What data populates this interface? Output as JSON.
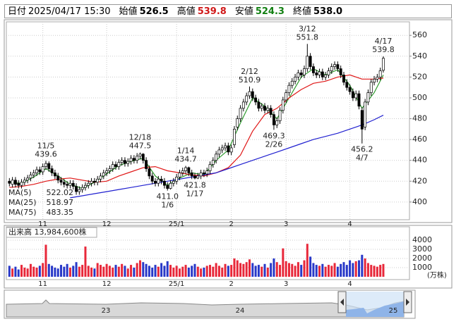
{
  "header": {
    "items": [
      {
        "label": "日付",
        "value": "2025/04/17 15:30",
        "color": "#000000"
      },
      {
        "label": "始値",
        "value": "526.5",
        "color": "#000000"
      },
      {
        "label": "高値",
        "value": "539.8",
        "color": "#d01818"
      },
      {
        "label": "安値",
        "value": "524.3",
        "color": "#128012"
      },
      {
        "label": "終値",
        "value": "538.0",
        "color": "#000000"
      }
    ]
  },
  "chart_data": {
    "type": "candlestick",
    "xlim": [
      -1,
      131.6
    ],
    "xticks": [
      {
        "value": 11,
        "label": "11"
      },
      {
        "value": 32,
        "label": "12"
      },
      {
        "value": 55,
        "label": "25/1"
      },
      {
        "value": 73,
        "label": "2"
      },
      {
        "value": 91,
        "label": "3"
      },
      {
        "value": 112,
        "label": "4"
      }
    ],
    "ylim": [
      383,
      573
    ],
    "yticks": [
      400,
      420,
      440,
      460,
      480,
      500,
      520,
      540,
      560
    ],
    "grid": true,
    "up_color": "#ffffff",
    "down_color": "#000000",
    "open": [
      420,
      417,
      421,
      418,
      416,
      419,
      421,
      423,
      426,
      428,
      431,
      429,
      434,
      437,
      432,
      428,
      425,
      421,
      419,
      417,
      416,
      418,
      415,
      410,
      412,
      414,
      416,
      418,
      420,
      419,
      422,
      425,
      428,
      430,
      432,
      436,
      434,
      438,
      440,
      437,
      439,
      442,
      440,
      444,
      446,
      440,
      432,
      425,
      420,
      418,
      422,
      420,
      416,
      413,
      418,
      420,
      424,
      428,
      430,
      433,
      428,
      425,
      423,
      425,
      428,
      427,
      430,
      436,
      440,
      446,
      450,
      452,
      454,
      448,
      455,
      472,
      480,
      490,
      496,
      502,
      506,
      500,
      496,
      490,
      492,
      488,
      490,
      484,
      474,
      478,
      488,
      498,
      505,
      512,
      516,
      520,
      524,
      522,
      528,
      540,
      530,
      524,
      522,
      525,
      520,
      522,
      526,
      530,
      532,
      528,
      522,
      515,
      510,
      506,
      500,
      504,
      488,
      472,
      496,
      505,
      515,
      518,
      520,
      526.5
    ],
    "high": [
      423,
      424,
      424,
      421,
      422,
      424,
      426,
      429,
      431,
      434,
      434,
      437,
      439.6,
      439,
      435,
      431,
      428,
      424,
      422,
      420,
      421,
      421,
      418,
      415,
      417,
      419,
      421,
      423,
      423,
      425,
      428,
      431,
      433,
      435,
      439,
      439,
      441,
      443,
      443,
      442,
      445,
      445,
      447,
      447.5,
      447,
      443,
      435,
      428,
      423,
      425,
      425,
      423,
      419,
      421,
      423,
      427,
      431,
      433,
      434.7,
      434,
      431,
      428,
      428,
      431,
      431,
      433,
      439,
      443,
      449,
      453,
      455,
      457,
      457,
      455,
      473,
      483,
      493,
      499,
      505,
      510.9,
      509,
      503,
      499,
      495,
      495,
      493,
      493,
      487,
      481,
      491,
      501,
      508,
      515,
      519,
      523,
      527,
      527,
      531,
      551.8,
      543,
      533,
      527,
      528,
      528,
      525,
      529,
      533,
      535,
      535,
      531,
      525,
      518,
      513,
      509,
      507,
      507,
      491,
      499,
      508,
      518,
      521,
      523,
      529,
      539.8
    ],
    "low": [
      415,
      414,
      414,
      413,
      413,
      416,
      418,
      420,
      423,
      425,
      426,
      426,
      431,
      429,
      425,
      422,
      418,
      416,
      414,
      413,
      413,
      412,
      407,
      407,
      409,
      411,
      413,
      415,
      416,
      416,
      419,
      422,
      425,
      427,
      429,
      431,
      431,
      435,
      434,
      434,
      436,
      437,
      437,
      441,
      437,
      429,
      422,
      417,
      415,
      415,
      417,
      413,
      411.0,
      412,
      415,
      417,
      421,
      425,
      427,
      425,
      422,
      421.8,
      422,
      422,
      424,
      424,
      427,
      433,
      437,
      443,
      447,
      449,
      445,
      445,
      452,
      469,
      477,
      487,
      493,
      499,
      497,
      493,
      487,
      487,
      485,
      485,
      481,
      469.3,
      471,
      475,
      485,
      495,
      502,
      509,
      513,
      517,
      519,
      519,
      525,
      527,
      521,
      519,
      519,
      517,
      517,
      519,
      523,
      527,
      525,
      519,
      512,
      507,
      503,
      497,
      497,
      489,
      456.2,
      469,
      493,
      502,
      512,
      515,
      517,
      524.3
    ],
    "close": [
      418,
      421,
      417,
      416,
      419,
      421,
      423,
      426,
      428,
      431,
      429,
      434,
      437,
      432,
      428,
      425,
      421,
      419,
      417,
      416,
      418,
      415,
      410,
      412,
      414,
      416,
      418,
      420,
      419,
      422,
      425,
      428,
      430,
      432,
      436,
      434,
      438,
      440,
      437,
      439,
      442,
      440,
      444,
      446,
      440,
      432,
      425,
      420,
      418,
      422,
      420,
      416,
      413,
      418,
      420,
      424,
      428,
      430,
      433,
      428,
      425,
      423,
      425,
      428,
      427,
      430,
      436,
      440,
      446,
      450,
      452,
      454,
      448,
      452,
      470,
      480,
      490,
      496,
      502,
      506,
      500,
      496,
      490,
      492,
      488,
      490,
      484,
      474,
      478,
      488,
      498,
      505,
      512,
      516,
      520,
      524,
      522,
      528,
      540,
      530,
      524,
      522,
      525,
      520,
      522,
      526,
      530,
      532,
      528,
      522,
      515,
      510,
      506,
      500,
      504,
      492,
      470,
      496,
      505,
      515,
      518,
      520,
      526,
      538.0
    ],
    "ma_x": [
      0,
      4,
      8,
      12,
      16,
      20,
      24,
      28,
      32,
      36,
      40,
      44,
      48,
      52,
      56,
      60,
      64,
      68,
      72,
      76,
      80,
      84,
      88,
      92,
      96,
      100,
      104,
      108,
      112,
      116,
      120,
      123
    ],
    "series": [
      {
        "name": "MA(5)",
        "color": "#2e9a2e",
        "values": [
          419,
          418,
          424,
          432,
          425,
          417,
          413,
          419,
          427,
          435,
          439,
          442,
          425,
          416,
          423,
          428,
          426,
          440,
          450,
          476,
          500,
          492,
          480,
          500,
          520,
          528,
          522,
          527,
          512,
          490,
          505,
          522.02
        ]
      },
      {
        "name": "MA(25)",
        "color": "#e01818",
        "values": [
          414,
          415,
          417,
          420,
          422,
          423,
          421,
          419,
          420,
          425,
          429,
          433,
          434,
          430,
          428,
          426,
          425,
          428,
          433,
          445,
          468,
          484,
          490,
          500,
          508,
          514,
          516,
          520,
          522,
          518,
          518,
          518.97
        ]
      },
      {
        "name": "MA(75)",
        "color": "#2020d0",
        "values": [
          null,
          null,
          null,
          null,
          null,
          404,
          406,
          408,
          410,
          412,
          414,
          416,
          418,
          420,
          422,
          424,
          426,
          428,
          432,
          436,
          440,
          444,
          448,
          452,
          456,
          460,
          463,
          466,
          470,
          474,
          479,
          483.35
        ]
      }
    ],
    "annotations": [
      {
        "x": 12,
        "date": "11/5",
        "value": 439.6,
        "place": "above"
      },
      {
        "x": 43,
        "date": "12/18",
        "value": 447.5,
        "place": "above"
      },
      {
        "x": 52,
        "date": "1/6",
        "value": 411,
        "value_label": "411.0",
        "place": "below"
      },
      {
        "x": 58,
        "date": "1/14",
        "value": 434.7,
        "place": "above"
      },
      {
        "x": 61,
        "date": "1/17",
        "value": 421.8,
        "place": "below"
      },
      {
        "x": 79,
        "date": "2/12",
        "value": 510.9,
        "place": "above"
      },
      {
        "x": 87,
        "date": "2/26",
        "value": 469.3,
        "place": "below"
      },
      {
        "x": 98,
        "date": "3/12",
        "value": 551.8,
        "place": "above"
      },
      {
        "x": 116,
        "date": "4/7",
        "value": 456.2,
        "place": "below"
      },
      {
        "x": 123,
        "date": "4/17",
        "value": 539.8,
        "place": "above"
      }
    ],
    "volume_caption": "出来高 13,984,600株",
    "volume_unit": "(万株)",
    "volume_ylim": [
      0,
      5460
    ],
    "volume_yticks": [
      1000,
      2000,
      3000,
      4000
    ],
    "volume_colors": {
      "up": "#e8283a",
      "down": "#2838c8"
    },
    "volume": [
      1200,
      900,
      1100,
      800,
      1300,
      1000,
      900,
      1400,
      1100,
      1000,
      1200,
      1500,
      3500,
      1400,
      1200,
      1000,
      900,
      1300,
      1100,
      1400,
      1000,
      1200,
      1600,
      1100,
      1300,
      3300,
      1200,
      1000,
      900,
      1500,
      1300,
      1100,
      1400,
      1200,
      1000,
      1300,
      1100,
      1400,
      1200,
      900,
      1300,
      1000,
      1500,
      1800,
      1600,
      1400,
      1200,
      1000,
      1300,
      1100,
      1500,
      1200,
      1700,
      1300,
      1000,
      1200,
      900,
      1100,
      1300,
      1000,
      1200,
      1400,
      1100,
      900,
      1000,
      1200,
      1300,
      1100,
      1500,
      1200,
      1000,
      1400,
      1200,
      1300,
      2000,
      1800,
      1500,
      1400,
      1600,
      1900,
      1500,
      1200,
      1300,
      1100,
      1400,
      1000,
      1500,
      2000,
      1600,
      1300,
      3100,
      1700,
      1500,
      1400,
      1200,
      1600,
      1300,
      1800,
      3600,
      2200,
      1500,
      1300,
      1200,
      1400,
      1100,
      1300,
      1200,
      1500,
      1100,
      1400,
      1600,
      1300,
      1800,
      1500,
      1700,
      1800,
      2400,
      2000,
      1500,
      1300,
      1200,
      1100,
      1300,
      1398.46
    ],
    "navigator_labels": [
      "23",
      "24",
      "25"
    ]
  }
}
